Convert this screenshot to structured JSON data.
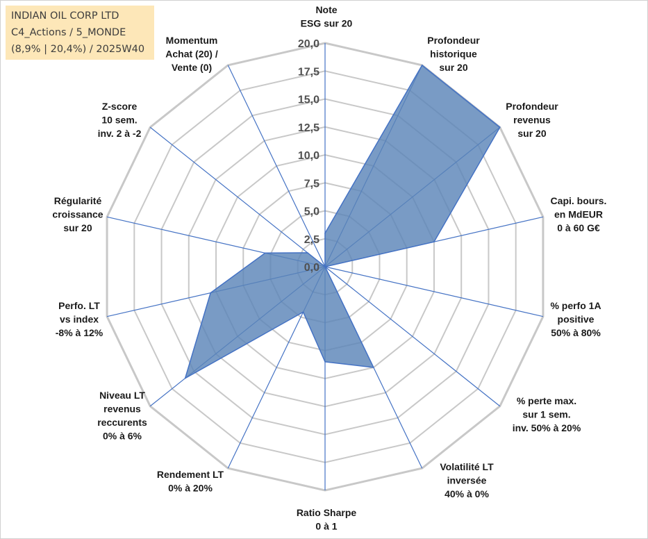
{
  "header": {
    "company": "INDIAN OIL CORP LTD",
    "portfolio": "C4_Actions / 5_MONDE",
    "stats": "(8,9% | 20,4%) / 2025W40"
  },
  "chart_data": {
    "type": "radar",
    "axes": [
      "Note\nESG sur 20",
      "Profondeur\nhistorique\nsur 20",
      "Profondeur\nrevenus\nsur 20",
      "Capi. bours.\nen MdEUR\n0 à 60 G€",
      "% perfo 1A\npositive\n50% à 80%",
      "% perte max.\nsur 1 sem.\ninv. 50% à 20%",
      "Volatilité LT\ninversée\n40% à 0%",
      "Ratio Sharpe\n0 à 1",
      "Rendement LT\n0% à 20%",
      "Niveau LT\nrevenus\nreccurents\n0% à 6%",
      "Perfo. LT\nvs index\n-8% à 12%",
      "Régularité\ncroissance\nsur 20",
      "Z-score\n10 sem.\ninv. 2 à -2",
      "Momentum\nAchat (20) /\nVente (0)"
    ],
    "values": [
      3.0,
      20.0,
      20.0,
      10.0,
      0.0,
      0.0,
      10.0,
      8.5,
      4.5,
      16.0,
      10.5,
      5.5,
      2.0,
      0.0
    ],
    "rmin": 0,
    "rmax": 20,
    "ticks": [
      "0,0",
      "2,5",
      "5,0",
      "7,5",
      "10,0",
      "12,5",
      "15,0",
      "17,5",
      "20,0"
    ],
    "fill_color": "#5b85b8",
    "line_color": "#4472c4",
    "grid_color": "#c8c8c8"
  }
}
